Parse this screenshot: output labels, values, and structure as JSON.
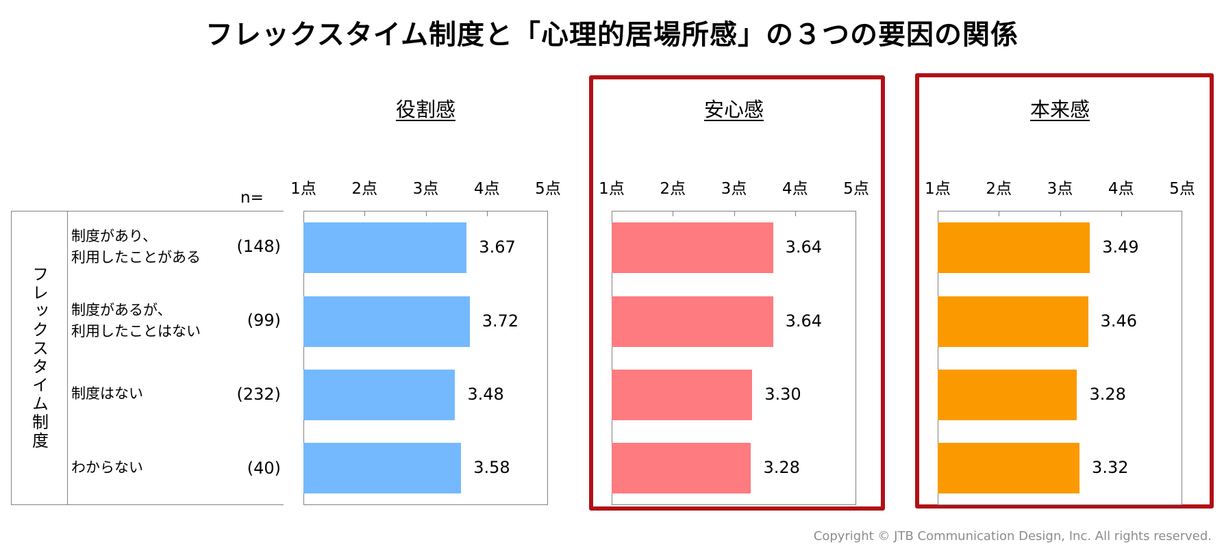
{
  "title": "フレックスタイム制度と「心理的居場所感」の３つの要因の関係",
  "n_label": "n=",
  "group_label": "フレックスタイム制度",
  "rows": [
    {
      "label_line1": "制度があり、",
      "label_line2": "利用したことがある",
      "n": "(148)"
    },
    {
      "label_line1": "制度があるが、",
      "label_line2": "利用したことはない",
      "n": "(99)"
    },
    {
      "label_line1": "制度はない",
      "label_line2": "",
      "n": "(232)"
    },
    {
      "label_line1": "わからない",
      "label_line2": "",
      "n": "(40)"
    }
  ],
  "copyright": "Copyright © JTB Communication Design, Inc. All rights reserved.",
  "chart_data": [
    {
      "type": "bar",
      "orientation": "horizontal",
      "title": "役割感",
      "categories": [
        "制度があり、利用したことがある",
        "制度があるが、利用したことはない",
        "制度はない",
        "わからない"
      ],
      "values": [
        3.67,
        3.72,
        3.48,
        3.58
      ],
      "value_labels": [
        "3.67",
        "3.72",
        "3.48",
        "3.58"
      ],
      "xlim": [
        1,
        5
      ],
      "ticks": [
        "1点",
        "2点",
        "3点",
        "4点",
        "5点"
      ],
      "color": "#74b9fd",
      "highlighted": false
    },
    {
      "type": "bar",
      "orientation": "horizontal",
      "title": "安心感",
      "categories": [
        "制度があり、利用したことがある",
        "制度があるが、利用したことはない",
        "制度はない",
        "わからない"
      ],
      "values": [
        3.64,
        3.64,
        3.3,
        3.28
      ],
      "value_labels": [
        "3.64",
        "3.64",
        "3.30",
        "3.28"
      ],
      "xlim": [
        1,
        5
      ],
      "ticks": [
        "1点",
        "2点",
        "3点",
        "4点",
        "5点"
      ],
      "color": "#fe7b80",
      "highlighted": true
    },
    {
      "type": "bar",
      "orientation": "horizontal",
      "title": "本来感",
      "categories": [
        "制度があり、利用したことがある",
        "制度があるが、利用したことはない",
        "制度はない",
        "わからない"
      ],
      "values": [
        3.49,
        3.46,
        3.28,
        3.32
      ],
      "value_labels": [
        "3.49",
        "3.46",
        "3.28",
        "3.32"
      ],
      "xlim": [
        1,
        5
      ],
      "ticks": [
        "1点",
        "2点",
        "3点",
        "4点",
        "5点"
      ],
      "color": "#fa9a00",
      "highlighted": true
    }
  ],
  "highlight_color": "#b01116"
}
